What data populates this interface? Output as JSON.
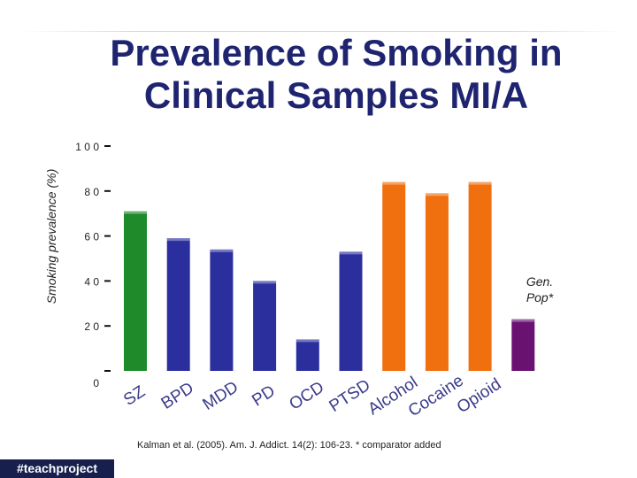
{
  "title": "Prevalence of Smoking in\nClinical Samples MI/A",
  "source": "Kalman et al. (2005). Am. J. Addict. 14(2): 106-23. * comparator added",
  "tag": "#teachproject",
  "chart_data": {
    "type": "bar",
    "title": "Prevalence of Smoking in Clinical Samples MI/A",
    "ylabel": "Smoking prevalence (%)",
    "xlabel": "",
    "ylim": [
      0,
      100
    ],
    "yticks": [
      {
        "value": 0,
        "label": "0"
      },
      {
        "value": 20,
        "label": "2 0"
      },
      {
        "value": 40,
        "label": "4 0"
      },
      {
        "value": 60,
        "label": "6 0"
      },
      {
        "value": 80,
        "label": "8 0"
      },
      {
        "value": 100,
        "label": "1 0 0"
      }
    ],
    "grid": false,
    "annotation": "Gen.\nPop*",
    "categories": [
      "SZ",
      "BPD",
      "MDD",
      "PD",
      "OCD",
      "PTSD",
      "Alcohol",
      "Cocaine",
      "Opioid",
      "Gen. Pop*"
    ],
    "values": [
      71,
      59,
      54,
      40,
      14,
      53,
      84,
      79,
      84,
      23
    ],
    "colors": [
      "#1e8a2a",
      "#2b2f9e",
      "#2b2f9e",
      "#2b2f9e",
      "#2b2f9e",
      "#2b2f9e",
      "#f07010",
      "#f07010",
      "#f07010",
      "#6a1272"
    ],
    "show_category_labels": [
      true,
      true,
      true,
      true,
      true,
      true,
      true,
      true,
      true,
      false
    ]
  }
}
